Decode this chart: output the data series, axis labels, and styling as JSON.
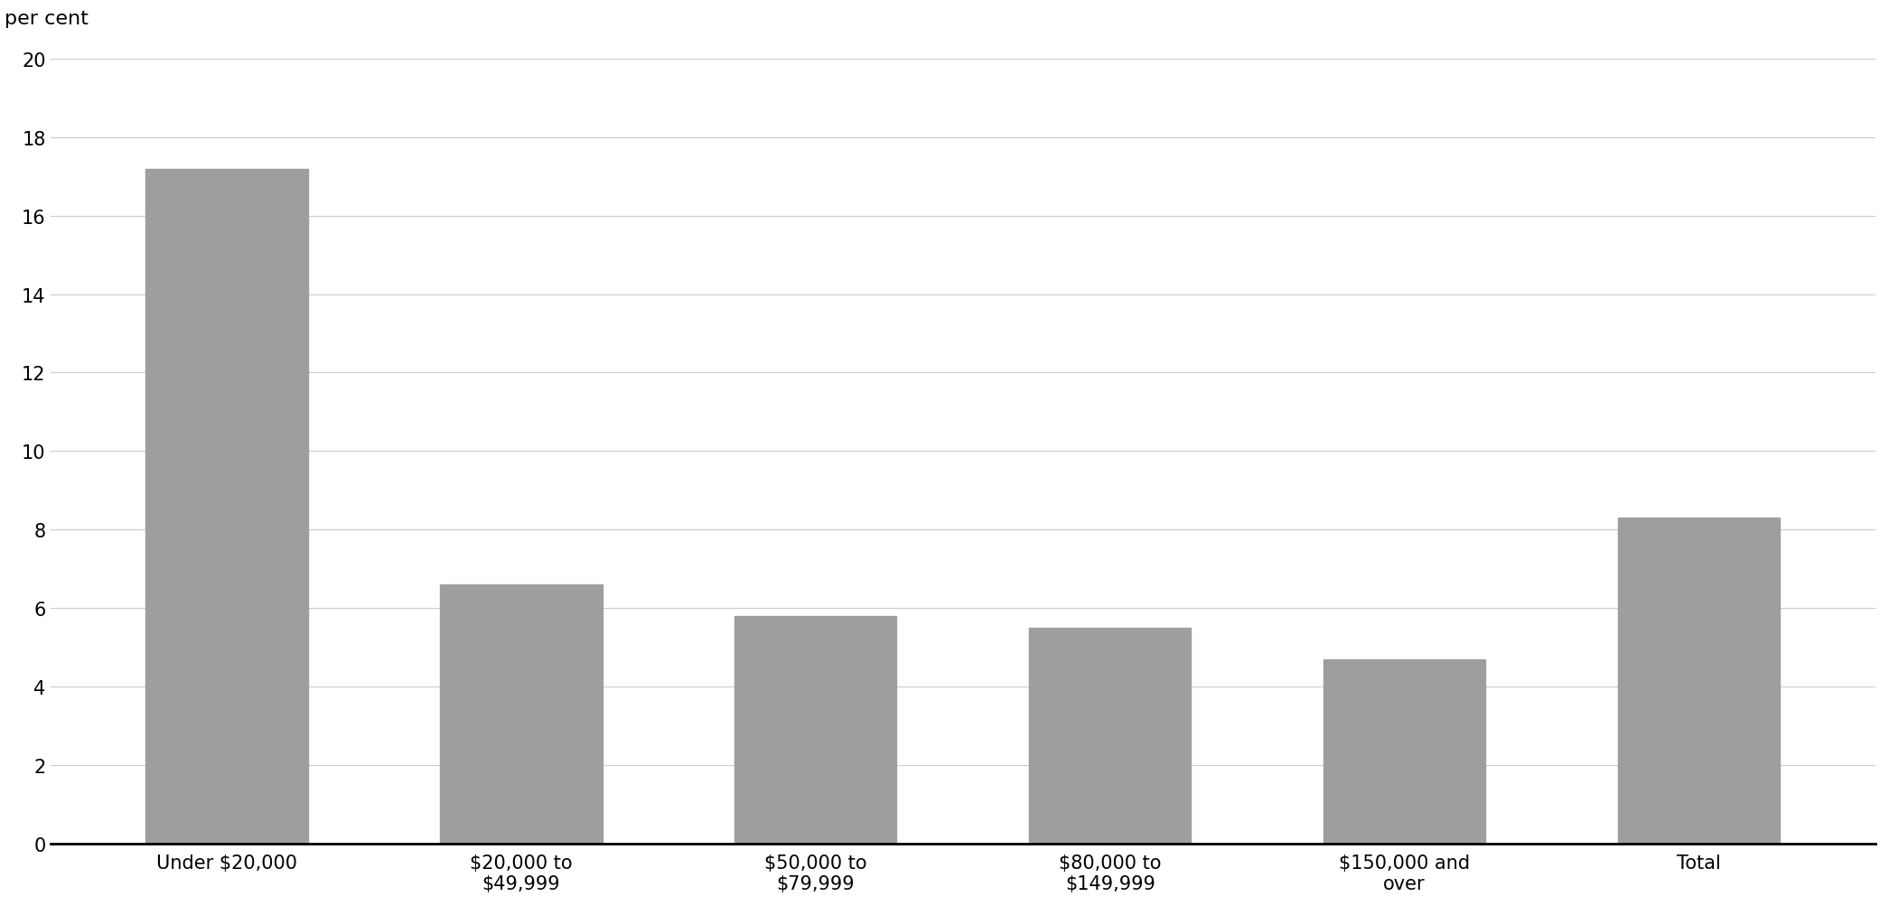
{
  "categories": [
    "Under $20,000",
    "$20,000 to\n$49,999",
    "$50,000 to\n$79,999",
    "$80,000 to\n$149,999",
    "$150,000 and\nover",
    "Total"
  ],
  "values": [
    17.2,
    6.6,
    5.8,
    5.5,
    4.7,
    8.3
  ],
  "bar_color": "#9e9e9e",
  "ylabel_text": "per cent",
  "ylim": [
    0,
    20
  ],
  "yticks": [
    0,
    2,
    4,
    6,
    8,
    10,
    12,
    14,
    16,
    18,
    20
  ],
  "background_color": "#ffffff",
  "grid_color": "#cccccc",
  "bar_width": 0.55,
  "ylabel_fontsize": 16,
  "tick_fontsize": 15,
  "xlabel_fontsize": 15
}
